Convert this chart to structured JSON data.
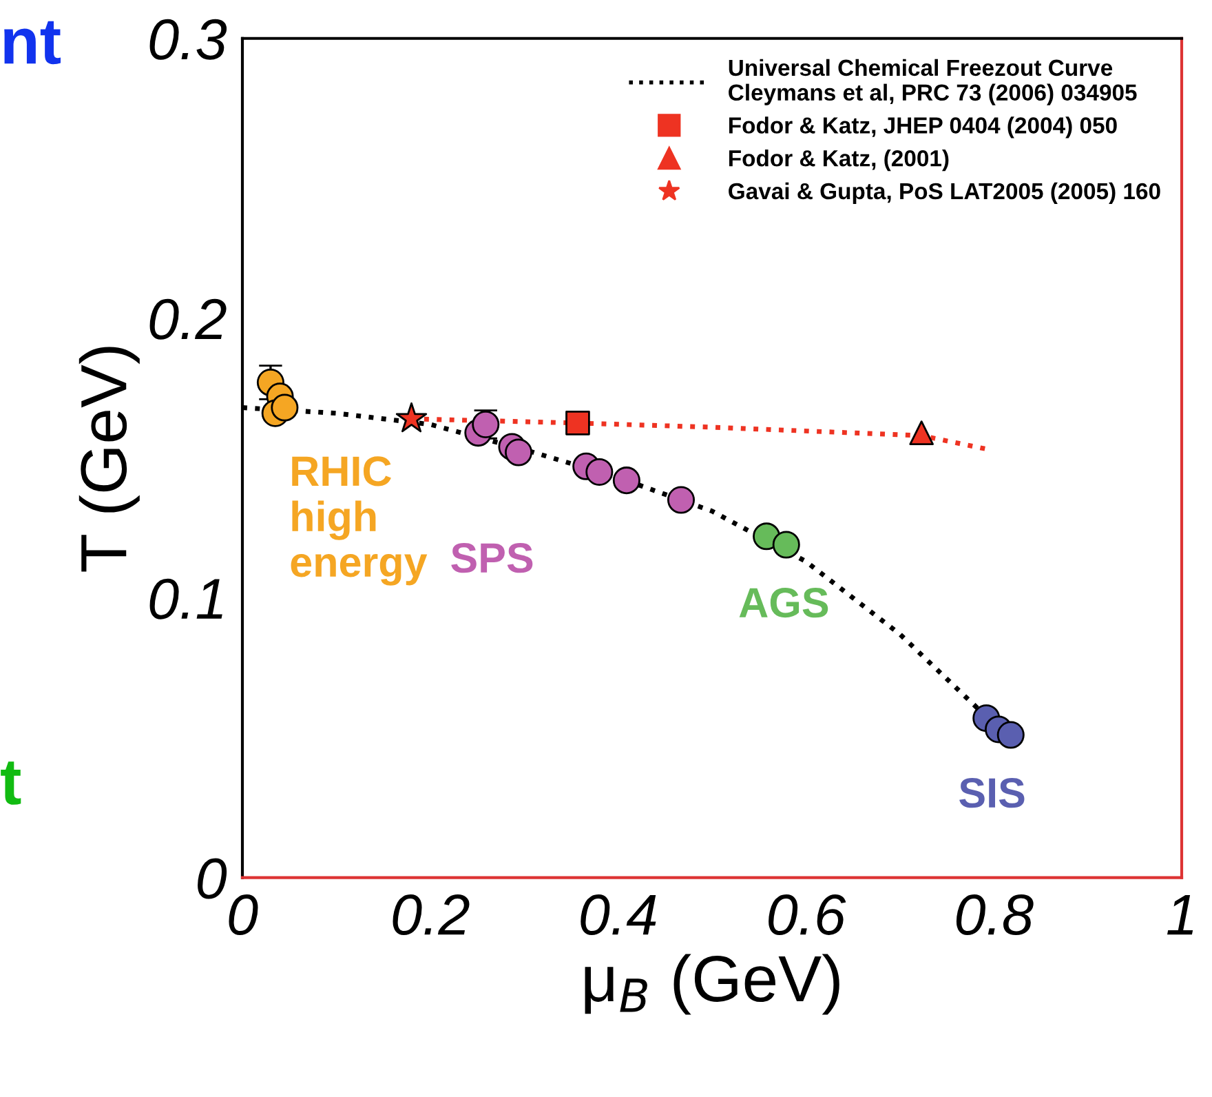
{
  "chart_data": {
    "type": "scatter",
    "xlabel": "μ$_{B}$ (GeV)",
    "ylabel": "T (GeV)",
    "xlim": [
      0,
      1
    ],
    "ylim": [
      0,
      0.3
    ],
    "xticks": [
      0,
      0.2,
      0.4,
      0.6,
      0.8,
      1
    ],
    "yticks": [
      0,
      0.1,
      0.2,
      0.3
    ],
    "grid": false,
    "legend": "top right",
    "series": [
      {
        "name": "Universal Chemical Freezout Curve\nCleymans et al, PRC 73 (2006) 034905",
        "type": "line",
        "color": "#000000",
        "line_style": "dotted",
        "marker": "none",
        "x": [
          0,
          0.1,
          0.2,
          0.3,
          0.4,
          0.5,
          0.6,
          0.7,
          0.8
        ],
        "values": [
          0.168,
          0.166,
          0.162,
          0.153,
          0.143,
          0.131,
          0.113,
          0.087,
          0.055
        ]
      },
      {
        "type": "line",
        "color": "#ee3322",
        "line_style": "dotted",
        "marker": "none",
        "x": [
          0.18,
          0.357,
          0.5,
          0.723,
          0.795
        ],
        "values": [
          0.164,
          0.1625,
          0.161,
          0.158,
          0.153
        ]
      },
      {
        "name": "RHIC\nhigh\nenergy",
        "color": "#f5a623",
        "marker": "circle",
        "x": [
          0.03,
          0.04,
          0.035,
          0.045
        ],
        "values": [
          0.177,
          0.172,
          0.166,
          0.168
        ],
        "errors": [
          0.006,
          null,
          null,
          null
        ]
      },
      {
        "name": "SPS",
        "color": "#c060b0",
        "marker": "circle",
        "x": [
          0.251,
          0.259,
          0.287,
          0.294,
          0.366,
          0.38,
          0.409,
          0.467
        ],
        "values": [
          0.159,
          0.162,
          0.154,
          0.152,
          0.147,
          0.145,
          0.142,
          0.135
        ],
        "errors": [
          null,
          0.005,
          null,
          null,
          null,
          null,
          null,
          null
        ]
      },
      {
        "name": "AGS",
        "color": "#66bb5a",
        "marker": "circle",
        "x": [
          0.558,
          0.579
        ],
        "values": [
          0.122,
          0.119
        ]
      },
      {
        "name": "SIS",
        "color": "#5a5fb0",
        "marker": "circle",
        "x": [
          0.792,
          0.805,
          0.818
        ],
        "values": [
          0.057,
          0.053,
          0.051
        ]
      },
      {
        "name": "Fodor & Katz, JHEP 0404 (2004) 050",
        "color": "#ee3322",
        "marker": "square",
        "x": [
          0.357
        ],
        "values": [
          0.1625
        ]
      },
      {
        "name": "Fodor & Katz, (2001)",
        "color": "#ee3322",
        "marker": "triangle",
        "x": [
          0.723
        ],
        "values": [
          0.159
        ]
      },
      {
        "name": "Gavai & Gupta, PoS LAT2005 (2005) 160",
        "color": "#ee3322",
        "marker": "star",
        "x": [
          0.18
        ],
        "values": [
          0.164
        ]
      }
    ],
    "annotations": [
      "nt",
      "t"
    ]
  }
}
